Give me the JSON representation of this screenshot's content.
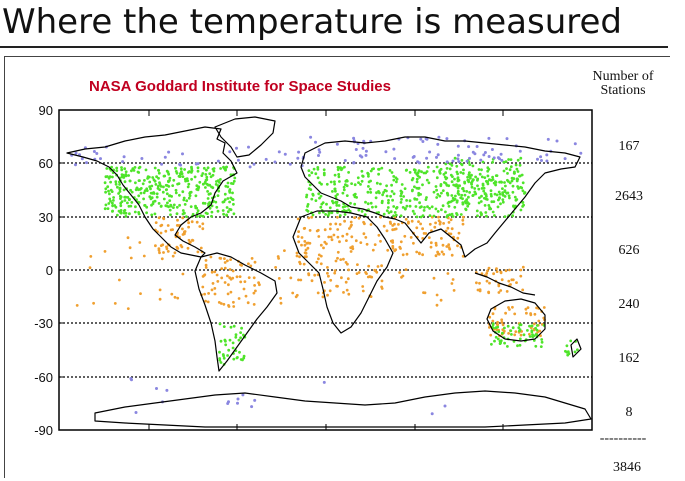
{
  "slide": {
    "title": "Where the temperature is measured"
  },
  "figure": {
    "source_label": "NASA Goddard Institute for Space Studies",
    "latitude_ticks": [
      "90",
      "60",
      "30",
      "0",
      "-30",
      "-60",
      "-90"
    ],
    "stations_header": [
      "Number of",
      "Stations"
    ],
    "band_counts": [
      "167",
      "2643",
      "626",
      "240",
      "162",
      "8"
    ],
    "total_separator": "----------",
    "total_count": "3846",
    "colors": {
      "polar": "#8a86e0",
      "midlat": "#4fe42a",
      "tropical": "#f0a030",
      "land_outline": "#000000",
      "gridline": "#000000",
      "source_label": "#c00020"
    }
  }
}
